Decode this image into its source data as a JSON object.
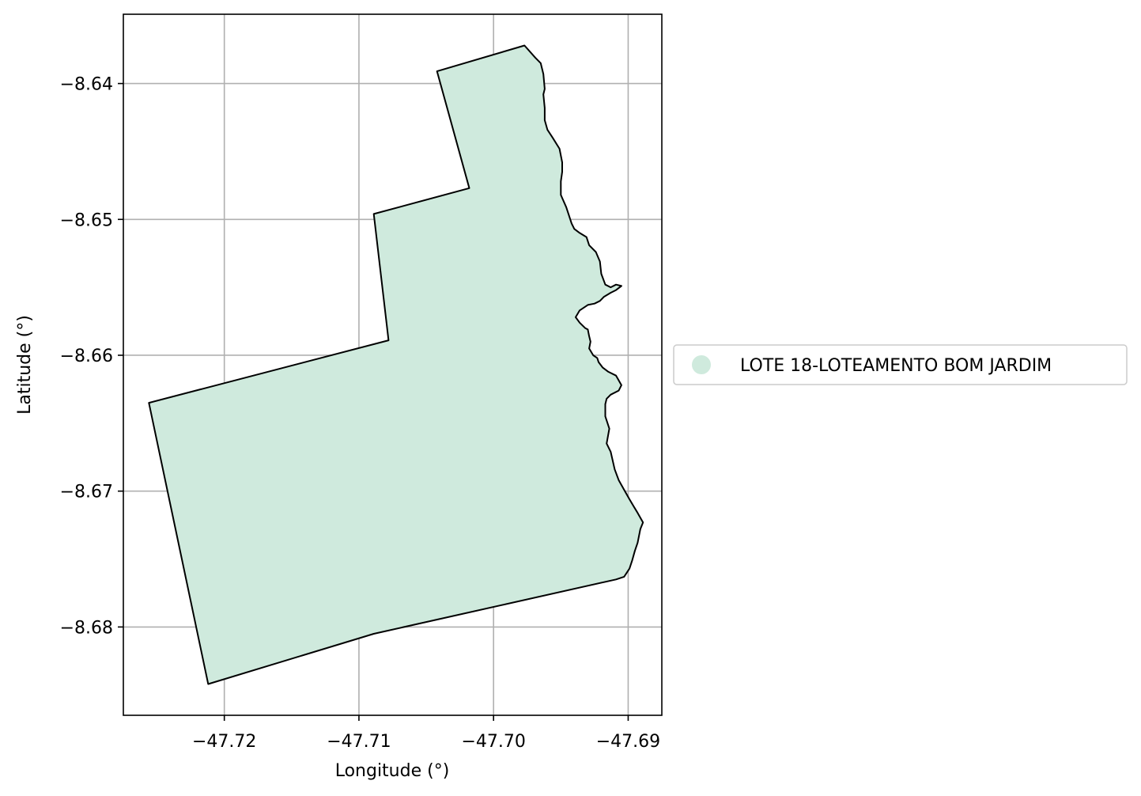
{
  "chart_data": {
    "type": "map",
    "xlabel": "Longitude (°)",
    "ylabel": "Latitude (°)",
    "xlim": [
      -47.7275,
      -47.6875
    ],
    "ylim": [
      -8.6865,
      -8.6349
    ],
    "xticks": [
      -47.72,
      -47.71,
      -47.7,
      -47.69
    ],
    "yticks": [
      -8.64,
      -8.65,
      -8.66,
      -8.67,
      -8.68
    ],
    "xtick_labels": [
      "−47.72",
      "−47.71",
      "−47.70",
      "−47.69"
    ],
    "ytick_labels": [
      "−8.64",
      "−8.65",
      "−8.66",
      "−8.67",
      "−8.68"
    ],
    "grid": true,
    "legend": {
      "placement": "center-right-outside",
      "entries": [
        "LOTE 18-LOTEAMENTO BOM JARDIM"
      ]
    },
    "colors": {
      "fill": "#cfeadd",
      "edge": "#000000",
      "grid": "#b0b0b0"
    },
    "series": [
      {
        "name": "LOTE 18-LOTEAMENTO BOM JARDIM",
        "polygon": [
          [
            -47.7042,
            -8.6391
          ],
          [
            -47.6977,
            -8.6372
          ],
          [
            -47.6969,
            -8.6381
          ],
          [
            -47.6965,
            -8.6385
          ],
          [
            -47.6963,
            -8.6393
          ],
          [
            -47.6962,
            -8.6404
          ],
          [
            -47.6963,
            -8.6408
          ],
          [
            -47.6962,
            -8.6418
          ],
          [
            -47.6962,
            -8.6427
          ],
          [
            -47.696,
            -8.6434
          ],
          [
            -47.6956,
            -8.644
          ],
          [
            -47.6951,
            -8.6448
          ],
          [
            -47.6949,
            -8.6458
          ],
          [
            -47.6949,
            -8.6465
          ],
          [
            -47.695,
            -8.6472
          ],
          [
            -47.695,
            -8.6482
          ],
          [
            -47.6946,
            -8.6491
          ],
          [
            -47.6944,
            -8.6497
          ],
          [
            -47.6942,
            -8.6503
          ],
          [
            -47.694,
            -8.6507
          ],
          [
            -47.6936,
            -8.651
          ],
          [
            -47.6931,
            -8.6513
          ],
          [
            -47.6929,
            -8.6519
          ],
          [
            -47.6924,
            -8.6524
          ],
          [
            -47.6921,
            -8.6531
          ],
          [
            -47.692,
            -8.654
          ],
          [
            -47.6917,
            -8.6548
          ],
          [
            -47.6913,
            -8.655
          ],
          [
            -47.6909,
            -8.6548
          ],
          [
            -47.6905,
            -8.6549
          ],
          [
            -47.6909,
            -8.6552
          ],
          [
            -47.6913,
            -8.6554
          ],
          [
            -47.6918,
            -8.6557
          ],
          [
            -47.6921,
            -8.656
          ],
          [
            -47.6925,
            -8.6562
          ],
          [
            -47.693,
            -8.6563
          ],
          [
            -47.6936,
            -8.6567
          ],
          [
            -47.6939,
            -8.6572
          ],
          [
            -47.6936,
            -8.6576
          ],
          [
            -47.6932,
            -8.658
          ],
          [
            -47.693,
            -8.6581
          ],
          [
            -47.6929,
            -8.6586
          ],
          [
            -47.6928,
            -8.659
          ],
          [
            -47.6929,
            -8.6595
          ],
          [
            -47.6926,
            -8.66
          ],
          [
            -47.6923,
            -8.6602
          ],
          [
            -47.6922,
            -8.6605
          ],
          [
            -47.6919,
            -8.6609
          ],
          [
            -47.6915,
            -8.6612
          ],
          [
            -47.6909,
            -8.6615
          ],
          [
            -47.6905,
            -8.6622
          ],
          [
            -47.6907,
            -8.6626
          ],
          [
            -47.6913,
            -8.6629
          ],
          [
            -47.6916,
            -8.6632
          ],
          [
            -47.6917,
            -8.6636
          ],
          [
            -47.6917,
            -8.6645
          ],
          [
            -47.6914,
            -8.6654
          ],
          [
            -47.6916,
            -8.6665
          ],
          [
            -47.6913,
            -8.6671
          ],
          [
            -47.691,
            -8.6684
          ],
          [
            -47.6907,
            -8.6692
          ],
          [
            -47.6903,
            -8.6699
          ],
          [
            -47.6899,
            -8.6706
          ],
          [
            -47.6896,
            -8.6711
          ],
          [
            -47.6893,
            -8.6716
          ],
          [
            -47.6889,
            -8.6723
          ],
          [
            -47.6891,
            -8.6728
          ],
          [
            -47.6893,
            -8.6738
          ],
          [
            -47.6895,
            -8.6744
          ],
          [
            -47.6897,
            -8.6751
          ],
          [
            -47.6899,
            -8.6757
          ],
          [
            -47.6903,
            -8.6763
          ],
          [
            -47.6909,
            -8.6765
          ],
          [
            -47.7089,
            -8.6805
          ],
          [
            -47.7212,
            -8.6842
          ],
          [
            -47.7256,
            -8.6635
          ],
          [
            -47.7078,
            -8.6589
          ],
          [
            -47.7089,
            -8.6496
          ],
          [
            -47.7018,
            -8.6477
          ],
          [
            -47.7042,
            -8.6391
          ]
        ]
      }
    ]
  }
}
